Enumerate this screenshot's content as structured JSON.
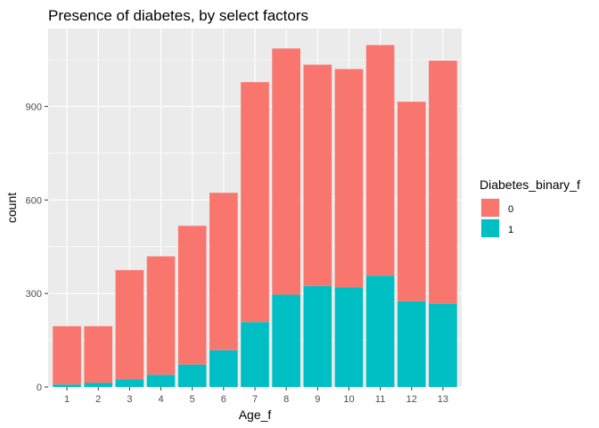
{
  "chart_data": {
    "type": "bar",
    "stacked": true,
    "title": "Presence of diabetes, by select factors",
    "xlabel": "Age_f",
    "ylabel": "count",
    "categories": [
      "1",
      "2",
      "3",
      "4",
      "5",
      "6",
      "7",
      "8",
      "9",
      "10",
      "11",
      "12",
      "13"
    ],
    "series": [
      {
        "name": "0",
        "color": "#F8766D",
        "values": [
          187,
          182,
          350,
          380,
          445,
          505,
          770,
          790,
          710,
          700,
          740,
          640,
          780
        ]
      },
      {
        "name": "1",
        "color": "#00BFC4",
        "values": [
          8,
          13,
          25,
          39,
          72,
          118,
          208,
          296,
          324,
          320,
          357,
          275,
          267
        ]
      }
    ],
    "ylim": [
      0,
      1150
    ],
    "yticks": [
      0,
      300,
      600,
      900
    ],
    "grid": true,
    "legend": {
      "title": "Diabetes_binary_f",
      "position": "right"
    }
  }
}
